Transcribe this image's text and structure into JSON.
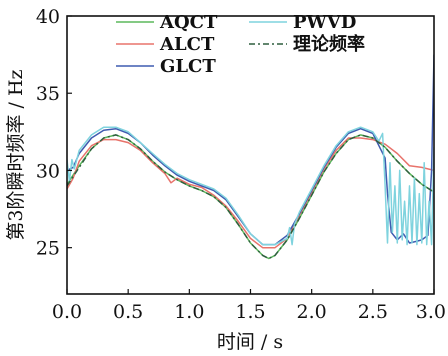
{
  "chart_data": {
    "type": "line",
    "xlabel": "时间 / s",
    "ylabel": "第3阶瞬时频率 / Hz",
    "xlim": [
      0,
      3.0
    ],
    "ylim": [
      22,
      40
    ],
    "x_ticks": [
      "0.0",
      "0.5",
      "1.0",
      "1.5",
      "2.0",
      "2.5",
      "3.0"
    ],
    "y_ticks": [
      "25",
      "30",
      "35",
      "40"
    ],
    "grid": false,
    "legend_position": "top",
    "series": [
      {
        "name": "AQCT",
        "color": "#5cb85c",
        "dash": "",
        "points": [
          [
            0.0,
            29.1
          ],
          [
            0.1,
            30.3
          ],
          [
            0.2,
            31.4
          ],
          [
            0.3,
            32.1
          ],
          [
            0.4,
            32.3
          ],
          [
            0.5,
            32.0
          ],
          [
            0.6,
            31.4
          ],
          [
            0.7,
            30.6
          ],
          [
            0.8,
            29.9
          ],
          [
            0.9,
            29.4
          ],
          [
            1.0,
            29.0
          ],
          [
            1.1,
            28.7
          ],
          [
            1.2,
            28.3
          ],
          [
            1.3,
            27.6
          ],
          [
            1.4,
            26.5
          ],
          [
            1.5,
            25.3
          ],
          [
            1.6,
            24.5
          ],
          [
            1.65,
            24.3
          ],
          [
            1.7,
            24.5
          ],
          [
            1.8,
            25.5
          ],
          [
            1.9,
            26.9
          ],
          [
            2.0,
            28.4
          ],
          [
            2.1,
            29.9
          ],
          [
            2.2,
            31.1
          ],
          [
            2.3,
            32.0
          ],
          [
            2.4,
            32.3
          ],
          [
            2.5,
            32.1
          ],
          [
            2.6,
            31.5
          ],
          [
            2.7,
            30.6
          ],
          [
            2.8,
            29.8
          ],
          [
            2.9,
            29.1
          ],
          [
            3.0,
            28.6
          ]
        ]
      },
      {
        "name": "ALCT",
        "color": "#e8736b",
        "dash": "",
        "points": [
          [
            0.0,
            28.8
          ],
          [
            0.05,
            29.5
          ],
          [
            0.1,
            30.6
          ],
          [
            0.2,
            31.6
          ],
          [
            0.3,
            32.0
          ],
          [
            0.4,
            32.0
          ],
          [
            0.5,
            31.8
          ],
          [
            0.6,
            31.3
          ],
          [
            0.7,
            30.5
          ],
          [
            0.8,
            29.8
          ],
          [
            0.85,
            29.2
          ],
          [
            0.9,
            29.5
          ],
          [
            1.0,
            29.1
          ],
          [
            1.1,
            28.9
          ],
          [
            1.2,
            28.4
          ],
          [
            1.3,
            27.7
          ],
          [
            1.4,
            26.7
          ],
          [
            1.5,
            25.6
          ],
          [
            1.6,
            25.0
          ],
          [
            1.7,
            25.0
          ],
          [
            1.8,
            25.6
          ],
          [
            1.9,
            27.1
          ],
          [
            2.0,
            28.6
          ],
          [
            2.1,
            30.1
          ],
          [
            2.2,
            31.3
          ],
          [
            2.3,
            32.1
          ],
          [
            2.4,
            32.1
          ],
          [
            2.5,
            32.0
          ],
          [
            2.6,
            31.7
          ],
          [
            2.7,
            31.1
          ],
          [
            2.8,
            30.3
          ],
          [
            2.9,
            30.2
          ],
          [
            3.0,
            30.0
          ]
        ]
      },
      {
        "name": "GLCT",
        "color": "#3f5bb0",
        "dash": "",
        "points": [
          [
            0.0,
            30.0
          ],
          [
            0.05,
            30.2
          ],
          [
            0.1,
            31.1
          ],
          [
            0.2,
            32.1
          ],
          [
            0.3,
            32.6
          ],
          [
            0.4,
            32.7
          ],
          [
            0.5,
            32.4
          ],
          [
            0.6,
            31.8
          ],
          [
            0.7,
            31.0
          ],
          [
            0.8,
            30.3
          ],
          [
            0.9,
            29.7
          ],
          [
            1.0,
            29.3
          ],
          [
            1.1,
            29.0
          ],
          [
            1.2,
            28.7
          ],
          [
            1.3,
            28.1
          ],
          [
            1.4,
            27.0
          ],
          [
            1.5,
            25.9
          ],
          [
            1.6,
            25.2
          ],
          [
            1.7,
            25.2
          ],
          [
            1.8,
            25.8
          ],
          [
            1.9,
            27.2
          ],
          [
            2.0,
            28.7
          ],
          [
            2.1,
            30.2
          ],
          [
            2.2,
            31.5
          ],
          [
            2.3,
            32.4
          ],
          [
            2.4,
            32.7
          ],
          [
            2.5,
            32.4
          ],
          [
            2.55,
            31.6
          ],
          [
            2.6,
            30.8
          ],
          [
            2.62,
            28.5
          ],
          [
            2.65,
            26.0
          ],
          [
            2.7,
            25.5
          ],
          [
            2.75,
            25.9
          ],
          [
            2.8,
            25.3
          ],
          [
            2.85,
            25.4
          ],
          [
            2.9,
            25.5
          ],
          [
            2.95,
            25.8
          ],
          [
            2.98,
            30.0
          ],
          [
            3.0,
            37.5
          ]
        ]
      },
      {
        "name": "PWVD",
        "color": "#7fd3de",
        "dash": "",
        "points": [
          [
            0.0,
            30.7
          ],
          [
            0.02,
            29.3
          ],
          [
            0.04,
            30.7
          ],
          [
            0.06,
            30.1
          ],
          [
            0.1,
            31.3
          ],
          [
            0.2,
            32.3
          ],
          [
            0.3,
            32.8
          ],
          [
            0.4,
            32.8
          ],
          [
            0.5,
            32.5
          ],
          [
            0.6,
            31.8
          ],
          [
            0.7,
            31.1
          ],
          [
            0.8,
            30.4
          ],
          [
            0.9,
            29.8
          ],
          [
            1.0,
            29.4
          ],
          [
            1.1,
            29.1
          ],
          [
            1.2,
            28.8
          ],
          [
            1.3,
            28.2
          ],
          [
            1.4,
            27.1
          ],
          [
            1.5,
            25.9
          ],
          [
            1.6,
            25.2
          ],
          [
            1.7,
            25.2
          ],
          [
            1.8,
            25.6
          ],
          [
            1.82,
            26.3
          ],
          [
            1.84,
            25.2
          ],
          [
            1.86,
            26.5
          ],
          [
            1.9,
            27.3
          ],
          [
            2.0,
            28.8
          ],
          [
            2.1,
            30.3
          ],
          [
            2.2,
            31.6
          ],
          [
            2.3,
            32.5
          ],
          [
            2.4,
            32.8
          ],
          [
            2.5,
            32.5
          ],
          [
            2.55,
            31.9
          ],
          [
            2.58,
            32.4
          ],
          [
            2.6,
            29.0
          ],
          [
            2.62,
            25.3
          ],
          [
            2.64,
            30.5
          ],
          [
            2.66,
            26.0
          ],
          [
            2.68,
            29.0
          ],
          [
            2.7,
            25.3
          ],
          [
            2.72,
            30.0
          ],
          [
            2.74,
            25.5
          ],
          [
            2.76,
            28.0
          ],
          [
            2.78,
            25.2
          ],
          [
            2.8,
            29.0
          ],
          [
            2.82,
            25.3
          ],
          [
            2.84,
            29.5
          ],
          [
            2.86,
            25.2
          ],
          [
            2.88,
            28.5
          ],
          [
            2.9,
            25.3
          ],
          [
            2.92,
            30.5
          ],
          [
            2.94,
            25.2
          ],
          [
            2.96,
            28.0
          ],
          [
            2.98,
            25.2
          ],
          [
            3.0,
            31.5
          ]
        ]
      },
      {
        "name": "理论频率",
        "color": "#2f5f3f",
        "dash": "6 3 2 3",
        "points": [
          [
            0.0,
            29.0
          ],
          [
            0.1,
            30.2
          ],
          [
            0.2,
            31.4
          ],
          [
            0.3,
            32.1
          ],
          [
            0.4,
            32.3
          ],
          [
            0.5,
            32.0
          ],
          [
            0.6,
            31.4
          ],
          [
            0.7,
            30.6
          ],
          [
            0.8,
            29.9
          ],
          [
            0.9,
            29.4
          ],
          [
            1.0,
            29.0
          ],
          [
            1.1,
            28.7
          ],
          [
            1.2,
            28.3
          ],
          [
            1.3,
            27.6
          ],
          [
            1.4,
            26.5
          ],
          [
            1.5,
            25.3
          ],
          [
            1.6,
            24.5
          ],
          [
            1.65,
            24.3
          ],
          [
            1.7,
            24.5
          ],
          [
            1.8,
            25.5
          ],
          [
            1.9,
            26.9
          ],
          [
            2.0,
            28.4
          ],
          [
            2.1,
            29.9
          ],
          [
            2.2,
            31.1
          ],
          [
            2.3,
            32.0
          ],
          [
            2.4,
            32.3
          ],
          [
            2.5,
            32.1
          ],
          [
            2.6,
            31.5
          ],
          [
            2.7,
            30.6
          ],
          [
            2.8,
            29.8
          ],
          [
            2.9,
            29.1
          ],
          [
            3.0,
            28.6
          ]
        ]
      }
    ]
  }
}
